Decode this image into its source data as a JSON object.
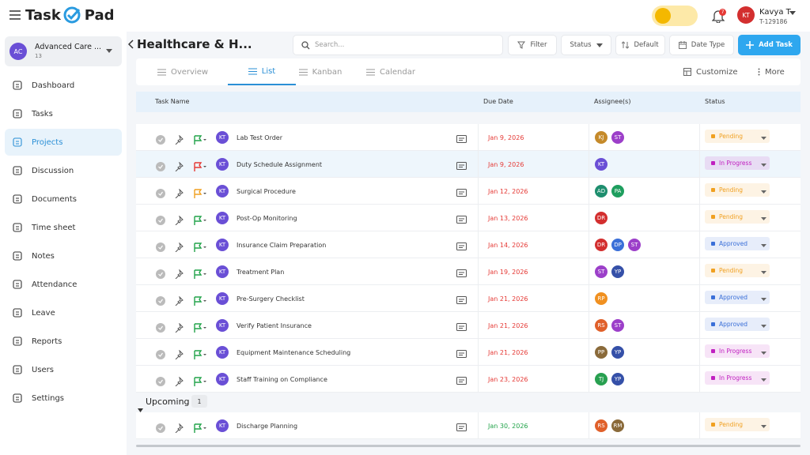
{
  "header": {
    "logo_left": "Task",
    "logo_right": "Pad",
    "notifications": "7",
    "user_initials": "KT",
    "user_name": "Kavya T",
    "user_id": "T-129186"
  },
  "sidebar": {
    "workspace_initials": "AC",
    "workspace_name": "Advanced Care ...",
    "workspace_count": "13",
    "nav": [
      "Dashboard",
      "Tasks",
      "Projects",
      "Discussion",
      "Documents",
      "Time sheet",
      "Notes",
      "Attendance",
      "Leave",
      "Reports",
      "Users",
      "Settings"
    ],
    "active": 2
  },
  "toolbar": {
    "title": "Healthcare & H...",
    "search_placeholder": "Search...",
    "filter": "Filter",
    "status": "Status",
    "sort": "Default",
    "date_type": "Date Type",
    "add_task": "Add Task"
  },
  "tabs": {
    "items": [
      "Overview",
      "List",
      "Kanban",
      "Calendar"
    ],
    "active": 1,
    "customize": "Customize",
    "more": "More"
  },
  "table": {
    "columns": [
      "Task Name",
      "Due Date",
      "Assignee(s)",
      "Status"
    ],
    "rows": [
      {
        "owner": "KT",
        "name": "Lab Test Order",
        "due": "Jan 9, 2026",
        "due_color": "#e53935",
        "flag_color": "#22a34a",
        "assignees": [
          {
            "initials": "KJ",
            "color": "#c58a2a"
          },
          {
            "initials": "ST",
            "color": "#9c3fc9"
          }
        ],
        "status": "Pending",
        "status_color": "#f0a020"
      },
      {
        "owner": "KT",
        "name": "Duty Schedule Assignment",
        "due": "Jan 9, 2026",
        "due_color": "#e53935",
        "flag_color": "#e53935",
        "assignees": [
          {
            "initials": "KT",
            "color": "#6a4fd6"
          }
        ],
        "status": "In Progress",
        "status_color": "#c020c0",
        "selected": true
      },
      {
        "owner": "KT",
        "name": "Surgical Procedure",
        "due": "Jan 12, 2026",
        "due_color": "#e53935",
        "flag_color": "#f0a020",
        "assignees": [
          {
            "initials": "AD",
            "color": "#1e8e6e"
          },
          {
            "initials": "PA",
            "color": "#1e9e5e"
          }
        ],
        "status": "Pending",
        "status_color": "#f0a020"
      },
      {
        "owner": "KT",
        "name": "Post-Op Monitoring",
        "due": "Jan 13, 2026",
        "due_color": "#e53935",
        "flag_color": "#22a34a",
        "assignees": [
          {
            "initials": "DR",
            "color": "#d32f2f"
          }
        ],
        "status": "Pending",
        "status_color": "#f0a020"
      },
      {
        "owner": "KT",
        "name": "Insurance Claim Preparation",
        "due": "Jan 14, 2026",
        "due_color": "#e53935",
        "flag_color": "#22a34a",
        "assignees": [
          {
            "initials": "DR",
            "color": "#d32f2f"
          },
          {
            "initials": "DP",
            "color": "#3a6fd8"
          },
          {
            "initials": "ST",
            "color": "#9c3fc9"
          }
        ],
        "status": "Approved",
        "status_color": "#3a6fd8"
      },
      {
        "owner": "KT",
        "name": "Treatment Plan",
        "due": "Jan 19, 2026",
        "due_color": "#e53935",
        "flag_color": "#22a34a",
        "assignees": [
          {
            "initials": "ST",
            "color": "#9c3fc9"
          },
          {
            "initials": "YP",
            "color": "#3550a8"
          }
        ],
        "status": "Pending",
        "status_color": "#f0a020"
      },
      {
        "owner": "KT",
        "name": "Pre-Surgery Checklist",
        "due": "Jan 21, 2026",
        "due_color": "#e53935",
        "flag_color": "#22a34a",
        "assignees": [
          {
            "initials": "RP",
            "color": "#f09020"
          }
        ],
        "status": "Approved",
        "status_color": "#3a6fd8"
      },
      {
        "owner": "KT",
        "name": "Verify Patient Insurance",
        "due": "Jan 21, 2026",
        "due_color": "#e53935",
        "flag_color": "#22a34a",
        "assignees": [
          {
            "initials": "RS",
            "color": "#e0602a"
          },
          {
            "initials": "ST",
            "color": "#9c3fc9"
          }
        ],
        "status": "Approved",
        "status_color": "#3a6fd8"
      },
      {
        "owner": "KT",
        "name": "Equipment Maintenance Scheduling",
        "due": "Jan 21, 2026",
        "due_color": "#e53935",
        "flag_color": "#22a34a",
        "assignees": [
          {
            "initials": "PP",
            "color": "#8a6a3a"
          },
          {
            "initials": "YP",
            "color": "#3550a8"
          }
        ],
        "status": "In Progress",
        "status_color": "#c020c0"
      },
      {
        "owner": "KT",
        "name": "Staff Training on Compliance",
        "due": "Jan 23, 2026",
        "due_color": "#e53935",
        "flag_color": "#22a34a",
        "assignees": [
          {
            "initials": "TJ",
            "color": "#28a050"
          },
          {
            "initials": "YP",
            "color": "#3550a8"
          }
        ],
        "status": "In Progress",
        "status_color": "#c020c0"
      }
    ],
    "groups": [
      {
        "name": "Upcoming",
        "count": "1",
        "rows": [
          {
            "owner": "KT",
            "name": "Discharge Planning",
            "due": "Jan 30, 2026",
            "due_color": "#22a34a",
            "flag_color": "#22a34a",
            "assignees": [
              {
                "initials": "RS",
                "color": "#e0602a"
              },
              {
                "initials": "RM",
                "color": "#8a6a3a"
              }
            ],
            "status": "Pending",
            "status_color": "#f0a020"
          }
        ]
      }
    ]
  }
}
